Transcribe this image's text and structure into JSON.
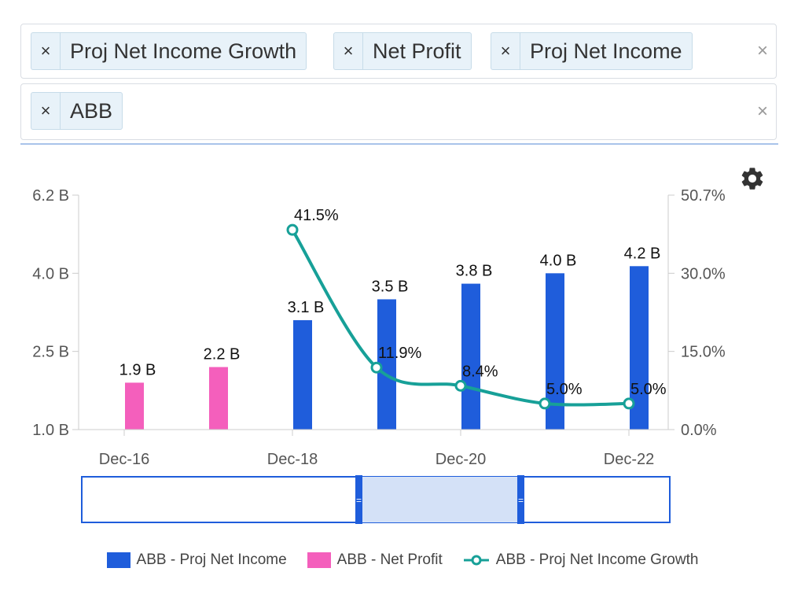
{
  "filters": {
    "metrics": [
      {
        "label": "Proj Net Income Growth"
      },
      {
        "label": "Net Profit"
      },
      {
        "label": "Proj Net Income"
      }
    ],
    "companies": [
      {
        "label": "ABB"
      }
    ],
    "remove_symbol": "×",
    "clear_symbol": "×"
  },
  "legend": {
    "items": [
      {
        "label": "ABB - Proj Net Income",
        "color": "#1f5ddb"
      },
      {
        "label": "ABB - Net Profit",
        "color": "#f45fbc"
      },
      {
        "label": "ABB - Proj Net Income Growth",
        "color": "#17a098"
      }
    ]
  },
  "chart_data": {
    "type": "bar",
    "x_ticks": [
      "Dec-16",
      "Dec-18",
      "Dec-20",
      "Dec-22"
    ],
    "periods": [
      "Dec-16",
      "Dec-17",
      "Dec-18",
      "Dec-19",
      "Dec-20",
      "Dec-21",
      "Dec-22"
    ],
    "left_axis": {
      "ticks": [
        1.0,
        2.5,
        4.0,
        6.2
      ],
      "tick_labels": [
        "1.0 B",
        "2.5 B",
        "4.0 B",
        "6.2 B"
      ],
      "range": [
        1.0,
        6.2
      ],
      "unit": "B"
    },
    "right_axis": {
      "ticks": [
        0.0,
        15.0,
        30.0,
        50.7
      ],
      "tick_labels": [
        "0.0%",
        "15.0%",
        "30.0%",
        "50.7%"
      ],
      "range": [
        0.0,
        50.7
      ],
      "unit": "%"
    },
    "series": [
      {
        "name": "ABB - Net Profit",
        "type": "bar",
        "axis": "left",
        "color": "#f45fbc",
        "points": [
          {
            "period": "Dec-16",
            "value": 1.9,
            "label": "1.9 B"
          },
          {
            "period": "Dec-17",
            "value": 2.2,
            "label": "2.2 B"
          }
        ]
      },
      {
        "name": "ABB - Proj Net Income",
        "type": "bar",
        "axis": "left",
        "color": "#1f5ddb",
        "points": [
          {
            "period": "Dec-18",
            "value": 3.1,
            "label": "3.1 B"
          },
          {
            "period": "Dec-19",
            "value": 3.5,
            "label": "3.5 B"
          },
          {
            "period": "Dec-20",
            "value": 3.8,
            "label": "3.8 B"
          },
          {
            "period": "Dec-21",
            "value": 4.0,
            "label": "4.0 B"
          },
          {
            "period": "Dec-22",
            "value": 4.2,
            "label": "4.2 B"
          }
        ]
      },
      {
        "name": "ABB - Proj Net Income Growth",
        "type": "line",
        "axis": "right",
        "color": "#17a098",
        "points": [
          {
            "period": "Dec-18",
            "value": 41.5,
            "label": "41.5%"
          },
          {
            "period": "Dec-19",
            "value": 11.9,
            "label": "11.9%"
          },
          {
            "period": "Dec-20",
            "value": 8.4,
            "label": "8.4%"
          },
          {
            "period": "Dec-21",
            "value": 5.0,
            "label": "5.0%"
          },
          {
            "period": "Dec-22",
            "value": 5.0,
            "label": "5.0%"
          }
        ]
      }
    ],
    "navigator": {
      "handle_symbol": "="
    }
  }
}
